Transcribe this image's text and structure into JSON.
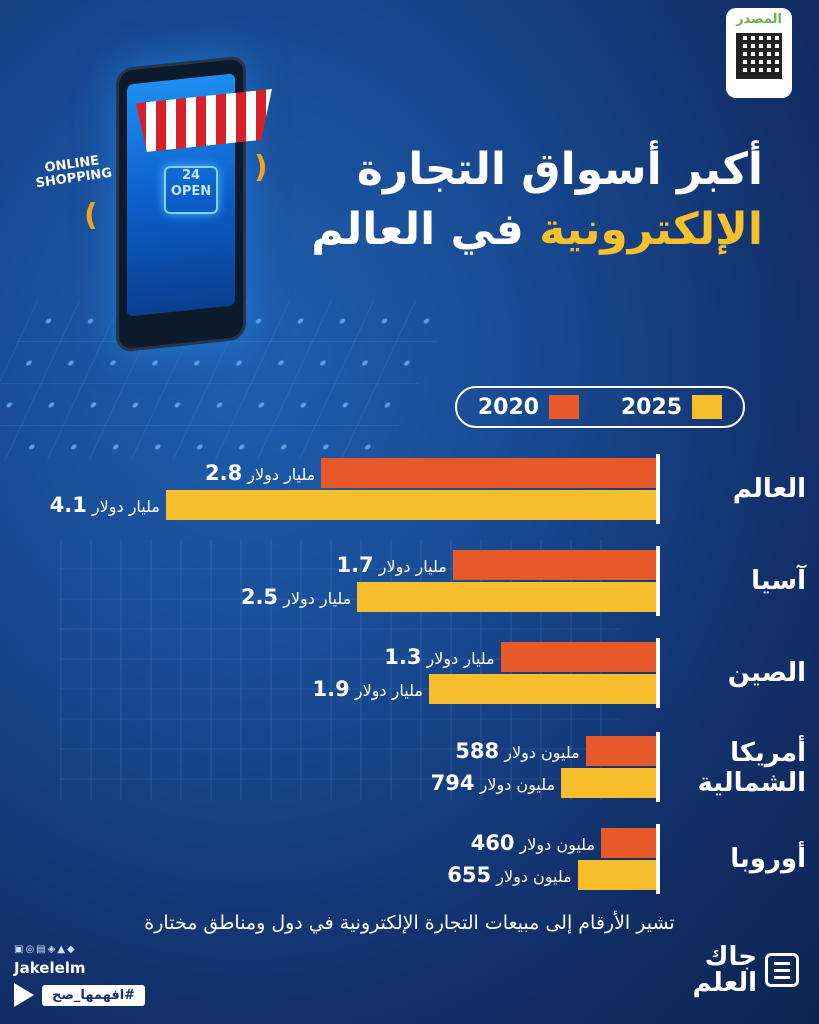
{
  "source": {
    "label": "المصدر"
  },
  "illustration": {
    "online_text": "ONLINE SHOPPING",
    "sign_text": "24 OPEN"
  },
  "title": {
    "line1": "أكبر أسواق التجارة",
    "line2_yellow": "الإلكترونية",
    "line2_white": "في العالم"
  },
  "colors": {
    "2020": "#e8592a",
    "2025": "#f6bd2d",
    "background": "#184a92"
  },
  "chart_data": {
    "type": "bar",
    "orientation": "horizontal",
    "legend": [
      "2020",
      "2025"
    ],
    "legend_placement": "top",
    "categories": [
      "العالم",
      "آسيا",
      "الصين",
      "أمريكا الشمالية",
      "أوروبا"
    ],
    "series": [
      {
        "name": "2020",
        "values": [
          2800,
          1700,
          1300,
          588,
          460
        ]
      },
      {
        "name": "2025",
        "values": [
          4100,
          2500,
          1900,
          794,
          655
        ]
      }
    ],
    "value_unit": "مليون دولار",
    "labels": [
      [
        {
          "num": "2.8",
          "unit": "مليار دولار"
        },
        {
          "num": "4.1",
          "unit": "مليار دولار"
        }
      ],
      [
        {
          "num": "1.7",
          "unit": "مليار دولار"
        },
        {
          "num": "2.5",
          "unit": "مليار دولار"
        }
      ],
      [
        {
          "num": "1.3",
          "unit": "مليار دولار"
        },
        {
          "num": "1.9",
          "unit": "مليار دولار"
        }
      ],
      [
        {
          "num": "588",
          "unit": "مليون دولار"
        },
        {
          "num": "794",
          "unit": "مليون دولار"
        }
      ],
      [
        {
          "num": "460",
          "unit": "مليون دولار"
        },
        {
          "num": "655",
          "unit": "مليون دولار"
        }
      ]
    ],
    "category_display": [
      [
        "العالم"
      ],
      [
        "آسيا"
      ],
      [
        "الصين"
      ],
      [
        "أمريكا",
        "الشمالية"
      ],
      [
        "أوروبا"
      ]
    ]
  },
  "footnote": "تشير الأرقام إلى مبيعات التجارة الإلكترونية في دول ومناطق مختارة",
  "brand": {
    "handle": "Jakelelm",
    "hashtag": "#افهمها_صح",
    "logo": "جاك العلم"
  }
}
